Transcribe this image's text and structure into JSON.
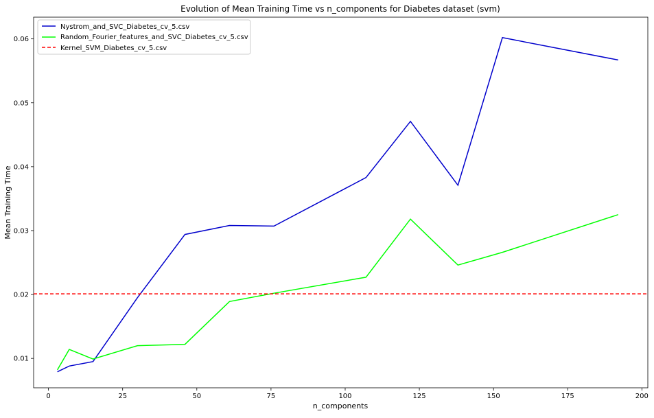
{
  "chart_data": {
    "type": "line",
    "title": "Evolution of Mean Training Time vs n_components for Diabetes dataset (svm)",
    "xlabel": "n_components",
    "ylabel": "Mean Training Time",
    "xlim": [
      -5,
      202
    ],
    "ylim": [
      0.0054,
      0.0634
    ],
    "xticks": [
      0,
      25,
      50,
      75,
      100,
      125,
      150,
      175,
      200
    ],
    "yticks": [
      0.01,
      0.02,
      0.03,
      0.04,
      0.05,
      0.06
    ],
    "ytick_labels": [
      "0.01",
      "0.02",
      "0.03",
      "0.04",
      "0.05",
      "0.06"
    ],
    "grid": false,
    "legend_position": "top-left",
    "series": [
      {
        "name": "Nystrom_and_SVC_Diabetes_cv_5.csv",
        "color": "#0000cc",
        "style": "solid",
        "x": [
          3,
          7,
          15,
          30,
          46,
          61,
          76,
          107,
          122,
          138,
          153,
          192
        ],
        "y": [
          0.0079,
          0.0088,
          0.0095,
          0.0195,
          0.0294,
          0.0308,
          0.0307,
          0.0383,
          0.0471,
          0.0371,
          0.0602,
          0.0567
        ]
      },
      {
        "name": "Random_Fourier_features_and_SVC_Diabetes_cv_5.csv",
        "color": "#00ff00",
        "style": "solid",
        "x": [
          3,
          7,
          15,
          30,
          46,
          61,
          76,
          107,
          122,
          138,
          153,
          192
        ],
        "y": [
          0.0082,
          0.0114,
          0.0099,
          0.012,
          0.0122,
          0.0189,
          0.0202,
          0.0227,
          0.0318,
          0.0246,
          0.0266,
          0.0325
        ]
      },
      {
        "name": "Kernel_SVM_Diabetes_cv_5.csv",
        "color": "#ff0000",
        "style": "dashed",
        "hline": 0.0201
      }
    ]
  }
}
